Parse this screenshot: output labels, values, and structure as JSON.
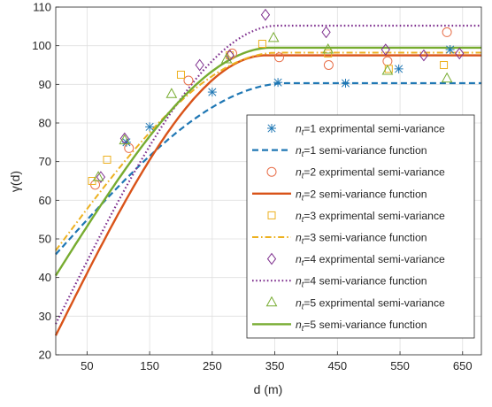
{
  "chart_data": {
    "type": "scatter",
    "title": "",
    "xlabel": "d (m)",
    "ylabel": "γ(d)",
    "xlim": [
      0,
      680
    ],
    "ylim": [
      20,
      110
    ],
    "xticks": [
      50,
      150,
      250,
      350,
      450,
      550,
      650
    ],
    "yticks": [
      20,
      30,
      40,
      50,
      60,
      70,
      80,
      90,
      100,
      110
    ],
    "grid": true,
    "legend_position": "bottom-right",
    "legend_prefix": "n",
    "legend_subscript": "t",
    "series": [
      {
        "name": "=1 exprimental semi-variance",
        "kind": "points",
        "marker": "asterisk",
        "color": "#1f77b4",
        "x": [
          113,
          150,
          250,
          355,
          463,
          548,
          630
        ],
        "y": [
          75,
          79,
          88,
          90.5,
          90.3,
          94,
          99
        ]
      },
      {
        "name": "=1 semi-variance function",
        "kind": "line",
        "model": "spherical",
        "nugget": 46,
        "sill": 90.3,
        "range": 370,
        "dash": "dashed",
        "color": "#1f77b4"
      },
      {
        "name": "=2 exprimental semi-variance",
        "kind": "points",
        "marker": "circle",
        "color": "#e8704b",
        "x": [
          63,
          117,
          212,
          282,
          357,
          436,
          530,
          625
        ],
        "y": [
          64,
          73.5,
          91,
          98,
          97,
          95,
          96,
          103.5
        ]
      },
      {
        "name": "=2 semi-variance function",
        "kind": "line",
        "model": "spherical",
        "nugget": 25,
        "sill": 97.5,
        "range": 335,
        "dash": "solid",
        "color": "#d95319"
      },
      {
        "name": "=3 exprimental semi-variance",
        "kind": "points",
        "marker": "square",
        "color": "#edb120",
        "x": [
          58,
          82,
          200,
          278,
          330,
          435,
          532,
          620
        ],
        "y": [
          65,
          70.5,
          92.5,
          97.5,
          100.5,
          98,
          94,
          95
        ]
      },
      {
        "name": "=3 semi-variance function",
        "kind": "line",
        "model": "spherical",
        "nugget": 47,
        "sill": 98.2,
        "range": 355,
        "dash": "dashdot",
        "color": "#edb120"
      },
      {
        "name": "=4 exprimental semi-variance",
        "kind": "points",
        "marker": "diamond",
        "color": "#7e2f8e",
        "x": [
          72,
          110,
          230,
          278,
          335,
          432,
          527,
          588,
          645
        ],
        "y": [
          66,
          76,
          95,
          97.5,
          108,
          103.5,
          99,
          97.5,
          98
        ]
      },
      {
        "name": "=4 semi-variance function",
        "kind": "line",
        "model": "spherical",
        "nugget": 28,
        "sill": 105.2,
        "range": 355,
        "dash": "dotted",
        "color": "#7e2f8e"
      },
      {
        "name": "=5 exprimental semi-variance",
        "kind": "points",
        "marker": "triangle",
        "color": "#77ac30",
        "x": [
          68,
          110,
          185,
          273,
          348,
          435,
          530,
          625
        ],
        "y": [
          66,
          75.5,
          87.5,
          96.5,
          102,
          99,
          93.5,
          91.5
        ]
      },
      {
        "name": "=5 semi-variance function",
        "kind": "line",
        "model": "spherical",
        "nugget": 40.5,
        "sill": 99.5,
        "range": 345,
        "dash": "solid",
        "color": "#77ac30"
      }
    ]
  }
}
